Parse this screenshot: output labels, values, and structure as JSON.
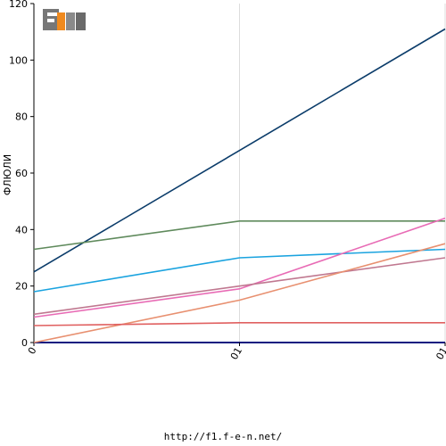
{
  "logo": {
    "text": "F1EN"
  },
  "footer": {
    "url": "http://f1.f-e-n.net/"
  },
  "chart_data": {
    "type": "line",
    "ylabel": "ФЛЮЛИ",
    "xlabel": "",
    "ylim": [
      0,
      120
    ],
    "y_ticks": [
      0,
      20,
      40,
      60,
      80,
      100,
      120
    ],
    "x_categories": [
      "0",
      "01",
      "01"
    ],
    "grid": true,
    "series": [
      {
        "color": "#0b3c6a",
        "values": [
          25,
          68,
          111
        ]
      },
      {
        "color": "#5f8a5c",
        "values": [
          33,
          43,
          43
        ]
      },
      {
        "color": "#1aa3df",
        "values": [
          18,
          30,
          33
        ]
      },
      {
        "color": "#e86bb5",
        "values": [
          9,
          19,
          44
        ]
      },
      {
        "color": "#c07890",
        "values": [
          10,
          20,
          30
        ]
      },
      {
        "color": "#e89070",
        "values": [
          0,
          15,
          35
        ]
      },
      {
        "color": "#e06060",
        "values": [
          6,
          7,
          7
        ]
      }
    ]
  }
}
